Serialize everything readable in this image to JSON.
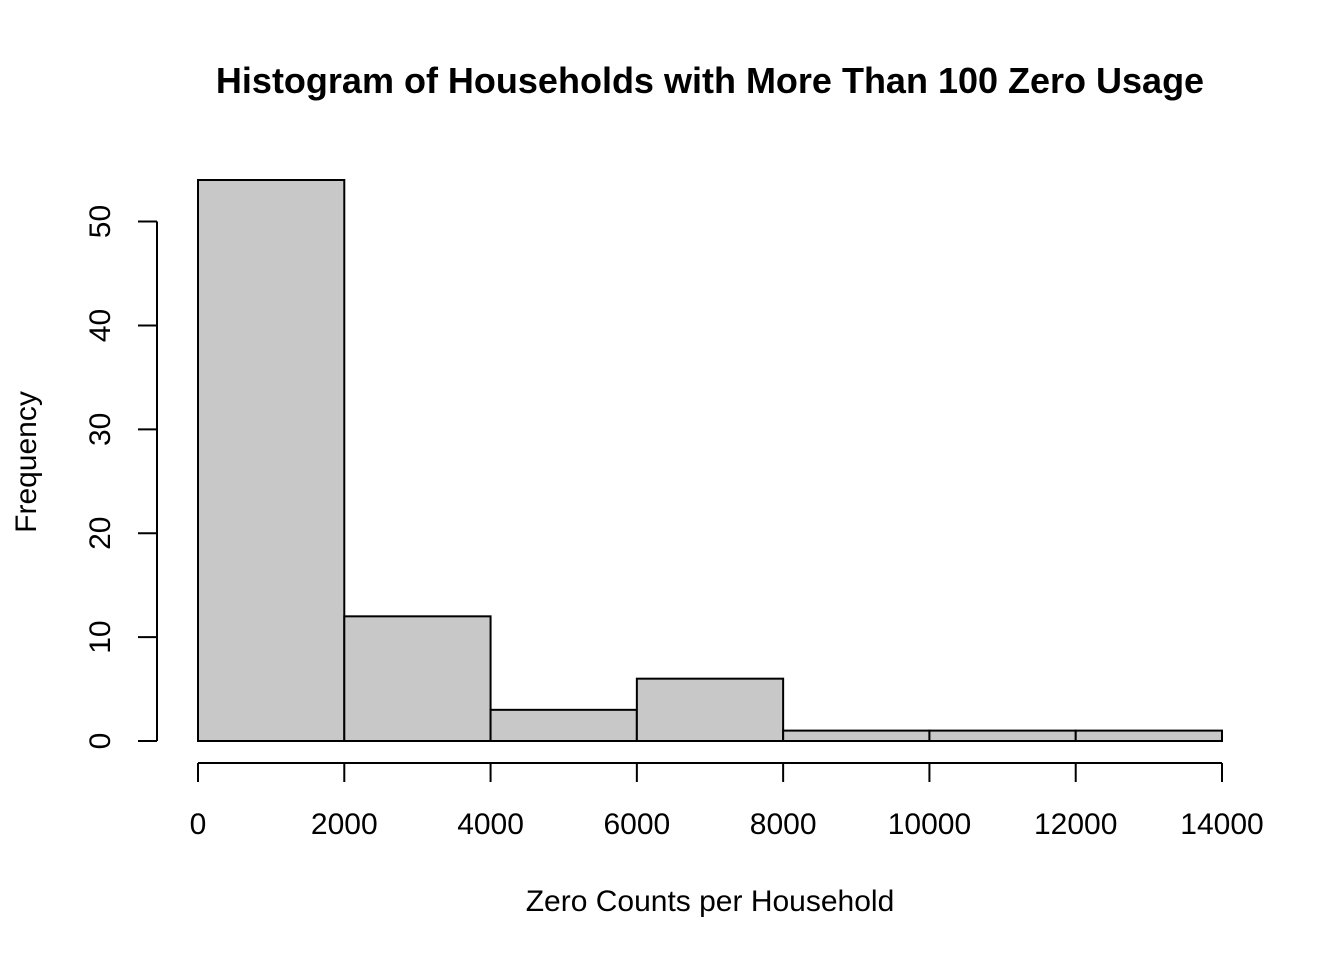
{
  "chart_data": {
    "type": "bar",
    "title": "Histogram of Households with More Than 100 Zero Usage",
    "xlabel": "Zero Counts per Household",
    "ylabel": "Frequency",
    "bins": [
      {
        "start": 0,
        "end": 2000,
        "count": 54
      },
      {
        "start": 2000,
        "end": 4000,
        "count": 12
      },
      {
        "start": 4000,
        "end": 6000,
        "count": 3
      },
      {
        "start": 6000,
        "end": 8000,
        "count": 6
      },
      {
        "start": 8000,
        "end": 10000,
        "count": 1
      },
      {
        "start": 10000,
        "end": 12000,
        "count": 1
      },
      {
        "start": 12000,
        "end": 14000,
        "count": 1
      }
    ],
    "xlim": [
      0,
      14000
    ],
    "ylim": [
      0,
      54
    ],
    "x_ticks": [
      0,
      2000,
      4000,
      6000,
      8000,
      10000,
      12000,
      14000
    ],
    "x_tick_labels": [
      "0",
      "2000",
      "4000",
      "6000",
      "8000",
      "10000",
      "12000",
      "14000"
    ],
    "y_ticks": [
      0,
      10,
      20,
      30,
      40,
      50
    ],
    "y_tick_labels": [
      "0",
      "10",
      "20",
      "30",
      "40",
      "50"
    ],
    "bar_color": "#c8c8c8",
    "grid": false,
    "legend": "none"
  }
}
